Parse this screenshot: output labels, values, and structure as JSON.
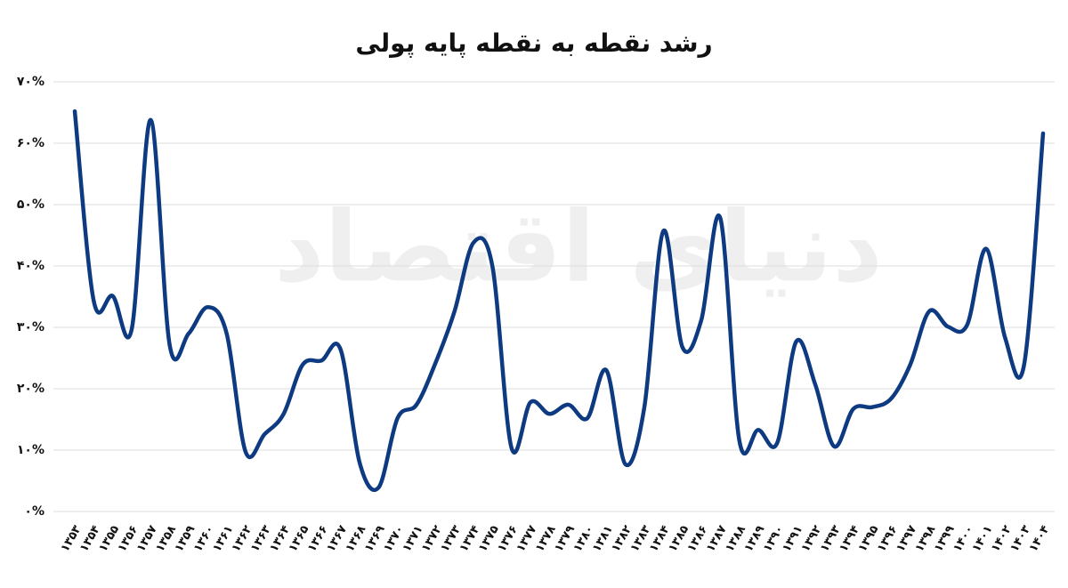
{
  "chart_data": {
    "type": "line",
    "title": "رشد نقطه به نقطه پایه پولی",
    "watermark": "دنیای اقتصاد",
    "categories": [
      "۱۳۵۳",
      "۱۳۵۴",
      "۱۳۵۵",
      "۱۳۵۶",
      "۱۳۵۷",
      "۱۳۵۸",
      "۱۳۵۹",
      "۱۳۶۰",
      "۱۳۶۱",
      "۱۳۶۲",
      "۱۳۶۳",
      "۱۳۶۴",
      "۱۳۶۵",
      "۱۳۶۶",
      "۱۳۶۷",
      "۱۳۶۸",
      "۱۳۶۹",
      "۱۳۷۰",
      "۱۳۷۱",
      "۱۳۷۲",
      "۱۳۷۳",
      "۱۳۷۴",
      "۱۳۷۵",
      "۱۳۷۶",
      "۱۳۷۷",
      "۱۳۷۸",
      "۱۳۷۹",
      "۱۳۸۰",
      "۱۳۸۱",
      "۱۳۸۲",
      "۱۳۸۳",
      "۱۳۸۴",
      "۱۳۸۵",
      "۱۳۸۶",
      "۱۳۸۷",
      "۱۳۸۸",
      "۱۳۸۹",
      "۱۳۹۰",
      "۱۳۹۱",
      "۱۳۹۲",
      "۱۳۹۳",
      "۱۳۹۴",
      "۱۳۹۵",
      "۱۳۹۶",
      "۱۳۹۷",
      "۱۳۹۸",
      "۱۳۹۹",
      "۱۴۰۰",
      "۱۴۰۱",
      "۱۴۰۲",
      "۱۴۰۳",
      "۱۴۰۴"
    ],
    "series": [
      {
        "color": "#0d3a80",
        "values": [
          65.2,
          34.3,
          35.1,
          29.7,
          63.8,
          27.1,
          29.0,
          33.3,
          29.0,
          9.7,
          12.6,
          15.9,
          23.9,
          24.6,
          26.4,
          8.0,
          3.9,
          15.2,
          17.4,
          24.2,
          32.6,
          43.8,
          39.9,
          10.4,
          17.8,
          15.9,
          17.4,
          15.2,
          23.0,
          7.7,
          17.0,
          45.7,
          26.8,
          31.2,
          47.8,
          11.6,
          13.3,
          11.2,
          27.7,
          20.7,
          10.6,
          16.7,
          17.0,
          18.4,
          23.9,
          32.6,
          30.1,
          30.4,
          42.8,
          28.3,
          23.9,
          61.6
        ]
      }
    ],
    "ylim": [
      0,
      70
    ],
    "yticks": [
      {
        "value": 0,
        "label": "۰%"
      },
      {
        "value": 10,
        "label": "۱۰%"
      },
      {
        "value": 20,
        "label": "۲۰%"
      },
      {
        "value": 30,
        "label": "۳۰%"
      },
      {
        "value": 40,
        "label": "۴۰%"
      },
      {
        "value": 50,
        "label": "۵۰%"
      },
      {
        "value": 60,
        "label": "۶۰%"
      },
      {
        "value": 70,
        "label": "۷۰%"
      }
    ],
    "grid": true
  }
}
